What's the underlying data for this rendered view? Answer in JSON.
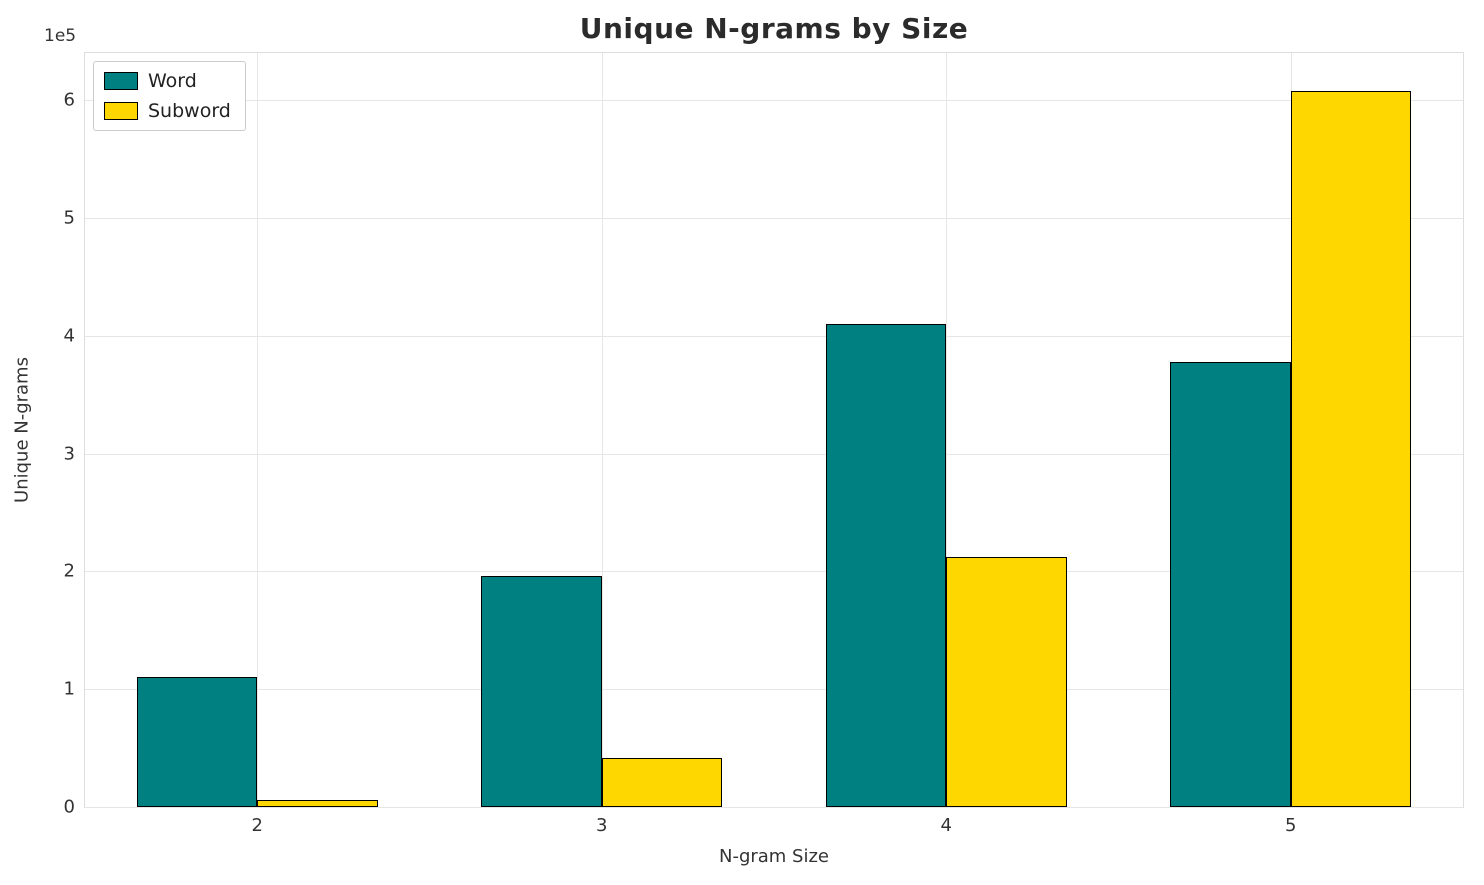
{
  "chart_data": {
    "type": "bar",
    "title": "Unique N-grams by Size",
    "xlabel": "N-gram Size",
    "ylabel": "Unique N-grams",
    "y_offset_text": "1e5",
    "categories": [
      "2",
      "3",
      "4",
      "5"
    ],
    "series": [
      {
        "name": "Word",
        "color": "#008080",
        "values": [
          110000,
          196000,
          410000,
          378000
        ]
      },
      {
        "name": "Subword",
        "color": "#FFD700",
        "values": [
          6000,
          42000,
          212000,
          608000
        ]
      }
    ],
    "ylim": [
      0,
      640000
    ],
    "yticks": [
      0,
      1,
      2,
      3,
      4,
      5,
      6
    ],
    "ytick_scale": 100000,
    "grid": true,
    "legend_position": "upper left",
    "bar_edge_color": "#000000",
    "bar_group_fraction": 0.7
  }
}
